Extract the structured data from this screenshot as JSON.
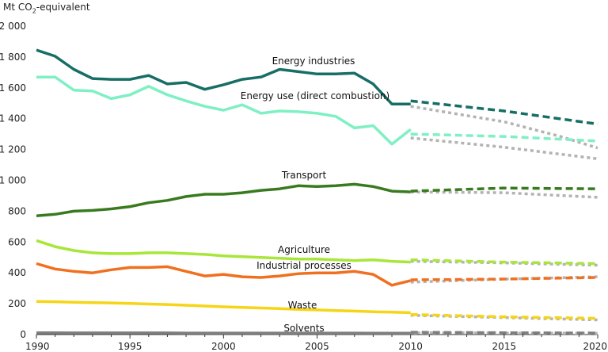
{
  "chart_data": {
    "type": "line",
    "ylabel": {
      "prefix": "Mt CO",
      "sub": "2",
      "suffix": "-equivalent"
    },
    "xlim": [
      1990,
      2020
    ],
    "ylim": [
      0,
      2000
    ],
    "x_ticks": [
      1990,
      1995,
      2000,
      2005,
      2010,
      2015,
      2020
    ],
    "y_ticks": [
      0,
      200,
      400,
      600,
      800,
      1000,
      1200,
      1400,
      1600,
      1800,
      2000
    ],
    "y_tick_labels": [
      "0",
      "200",
      "400",
      "600",
      "800",
      "1 000",
      "1 200",
      "1 400",
      "1 600",
      "1 800",
      "2 000"
    ],
    "grid": false,
    "legend": "inline labels",
    "historical_years": [
      1990,
      1991,
      1992,
      1993,
      1994,
      1995,
      1996,
      1997,
      1998,
      1999,
      2000,
      2001,
      2002,
      2003,
      2004,
      2005,
      2006,
      2007,
      2008,
      2009,
      2010
    ],
    "series": [
      {
        "name": "Energy industries",
        "color": "#176e66",
        "values": [
          1845,
          1805,
          1720,
          1660,
          1655,
          1655,
          1680,
          1625,
          1635,
          1590,
          1620,
          1655,
          1670,
          1720,
          1705,
          1690,
          1690,
          1695,
          1625,
          1495,
          1495
        ],
        "projection_with_measures": {
          "x": [
            2010,
            2015,
            2020
          ],
          "y": [
            1515,
            1450,
            1365
          ]
        },
        "projection_additional": {
          "x": [
            2010,
            2015,
            2018,
            2020
          ],
          "y": [
            1480,
            1380,
            1285,
            1210
          ]
        }
      },
      {
        "name": "Energy use (direct combustion)",
        "color": "#7ff0c4",
        "values": [
          1670,
          1670,
          1585,
          1580,
          1530,
          1555,
          1610,
          1555,
          1515,
          1480,
          1455,
          1490,
          1435,
          1450,
          1445,
          1435,
          1415,
          1340,
          1355,
          1235,
          1330
        ],
        "projection_with_measures": {
          "x": [
            2010,
            2015,
            2020
          ],
          "y": [
            1300,
            1285,
            1255
          ]
        },
        "projection_additional": {
          "x": [
            2010,
            2015,
            2020
          ],
          "y": [
            1275,
            1215,
            1140
          ]
        }
      },
      {
        "name": "Transport",
        "color": "#3a7a1f",
        "values": [
          770,
          780,
          800,
          805,
          815,
          830,
          855,
          870,
          895,
          910,
          910,
          920,
          935,
          945,
          965,
          960,
          965,
          975,
          960,
          930,
          925
        ],
        "projection_with_measures": {
          "x": [
            2010,
            2015,
            2020
          ],
          "y": [
            930,
            950,
            945
          ]
        },
        "projection_additional": {
          "x": [
            2010,
            2015,
            2020
          ],
          "y": [
            925,
            920,
            890
          ]
        }
      },
      {
        "name": "Agriculture",
        "color": "#a8e63a",
        "values": [
          610,
          570,
          545,
          530,
          525,
          525,
          530,
          530,
          525,
          520,
          510,
          505,
          500,
          495,
          490,
          490,
          485,
          480,
          485,
          475,
          470
        ],
        "projection_with_measures": {
          "x": [
            2010,
            2015,
            2020
          ],
          "y": [
            485,
            470,
            460
          ]
        },
        "projection_additional": {
          "x": [
            2010,
            2015,
            2020
          ],
          "y": [
            475,
            465,
            450
          ]
        }
      },
      {
        "name": "Industrial processes",
        "color": "#f07020",
        "values": [
          460,
          425,
          410,
          400,
          420,
          435,
          435,
          440,
          410,
          380,
          390,
          375,
          370,
          380,
          395,
          400,
          400,
          410,
          390,
          320,
          350
        ],
        "projection_with_measures": {
          "x": [
            2010,
            2015,
            2020
          ],
          "y": [
            355,
            360,
            370
          ]
        },
        "projection_additional": {
          "x": [
            2010,
            2015,
            2020
          ],
          "y": [
            340,
            360,
            375
          ]
        }
      },
      {
        "name": "Waste",
        "color": "#f5d516",
        "values": [
          215,
          213,
          210,
          207,
          205,
          202,
          198,
          195,
          190,
          185,
          180,
          176,
          172,
          168,
          163,
          160,
          156,
          152,
          148,
          145,
          142
        ],
        "projection_with_measures": {
          "x": [
            2010,
            2015,
            2020
          ],
          "y": [
            130,
            115,
            105
          ]
        },
        "projection_additional": {
          "x": [
            2010,
            2015,
            2020
          ],
          "y": [
            125,
            110,
            95
          ]
        }
      },
      {
        "name": "Solvents",
        "color": "#7f7f7f",
        "values": [
          12,
          12,
          11,
          11,
          11,
          11,
          11,
          11,
          10,
          10,
          10,
          10,
          10,
          10,
          10,
          10,
          10,
          10,
          9,
          9,
          9
        ],
        "projection_with_measures": {
          "x": [
            2010,
            2015,
            2020
          ],
          "y": [
            15,
            12,
            10
          ]
        },
        "projection_additional": {
          "x": [
            2010,
            2015,
            2020
          ],
          "y": [
            12,
            10,
            8
          ]
        }
      }
    ]
  }
}
